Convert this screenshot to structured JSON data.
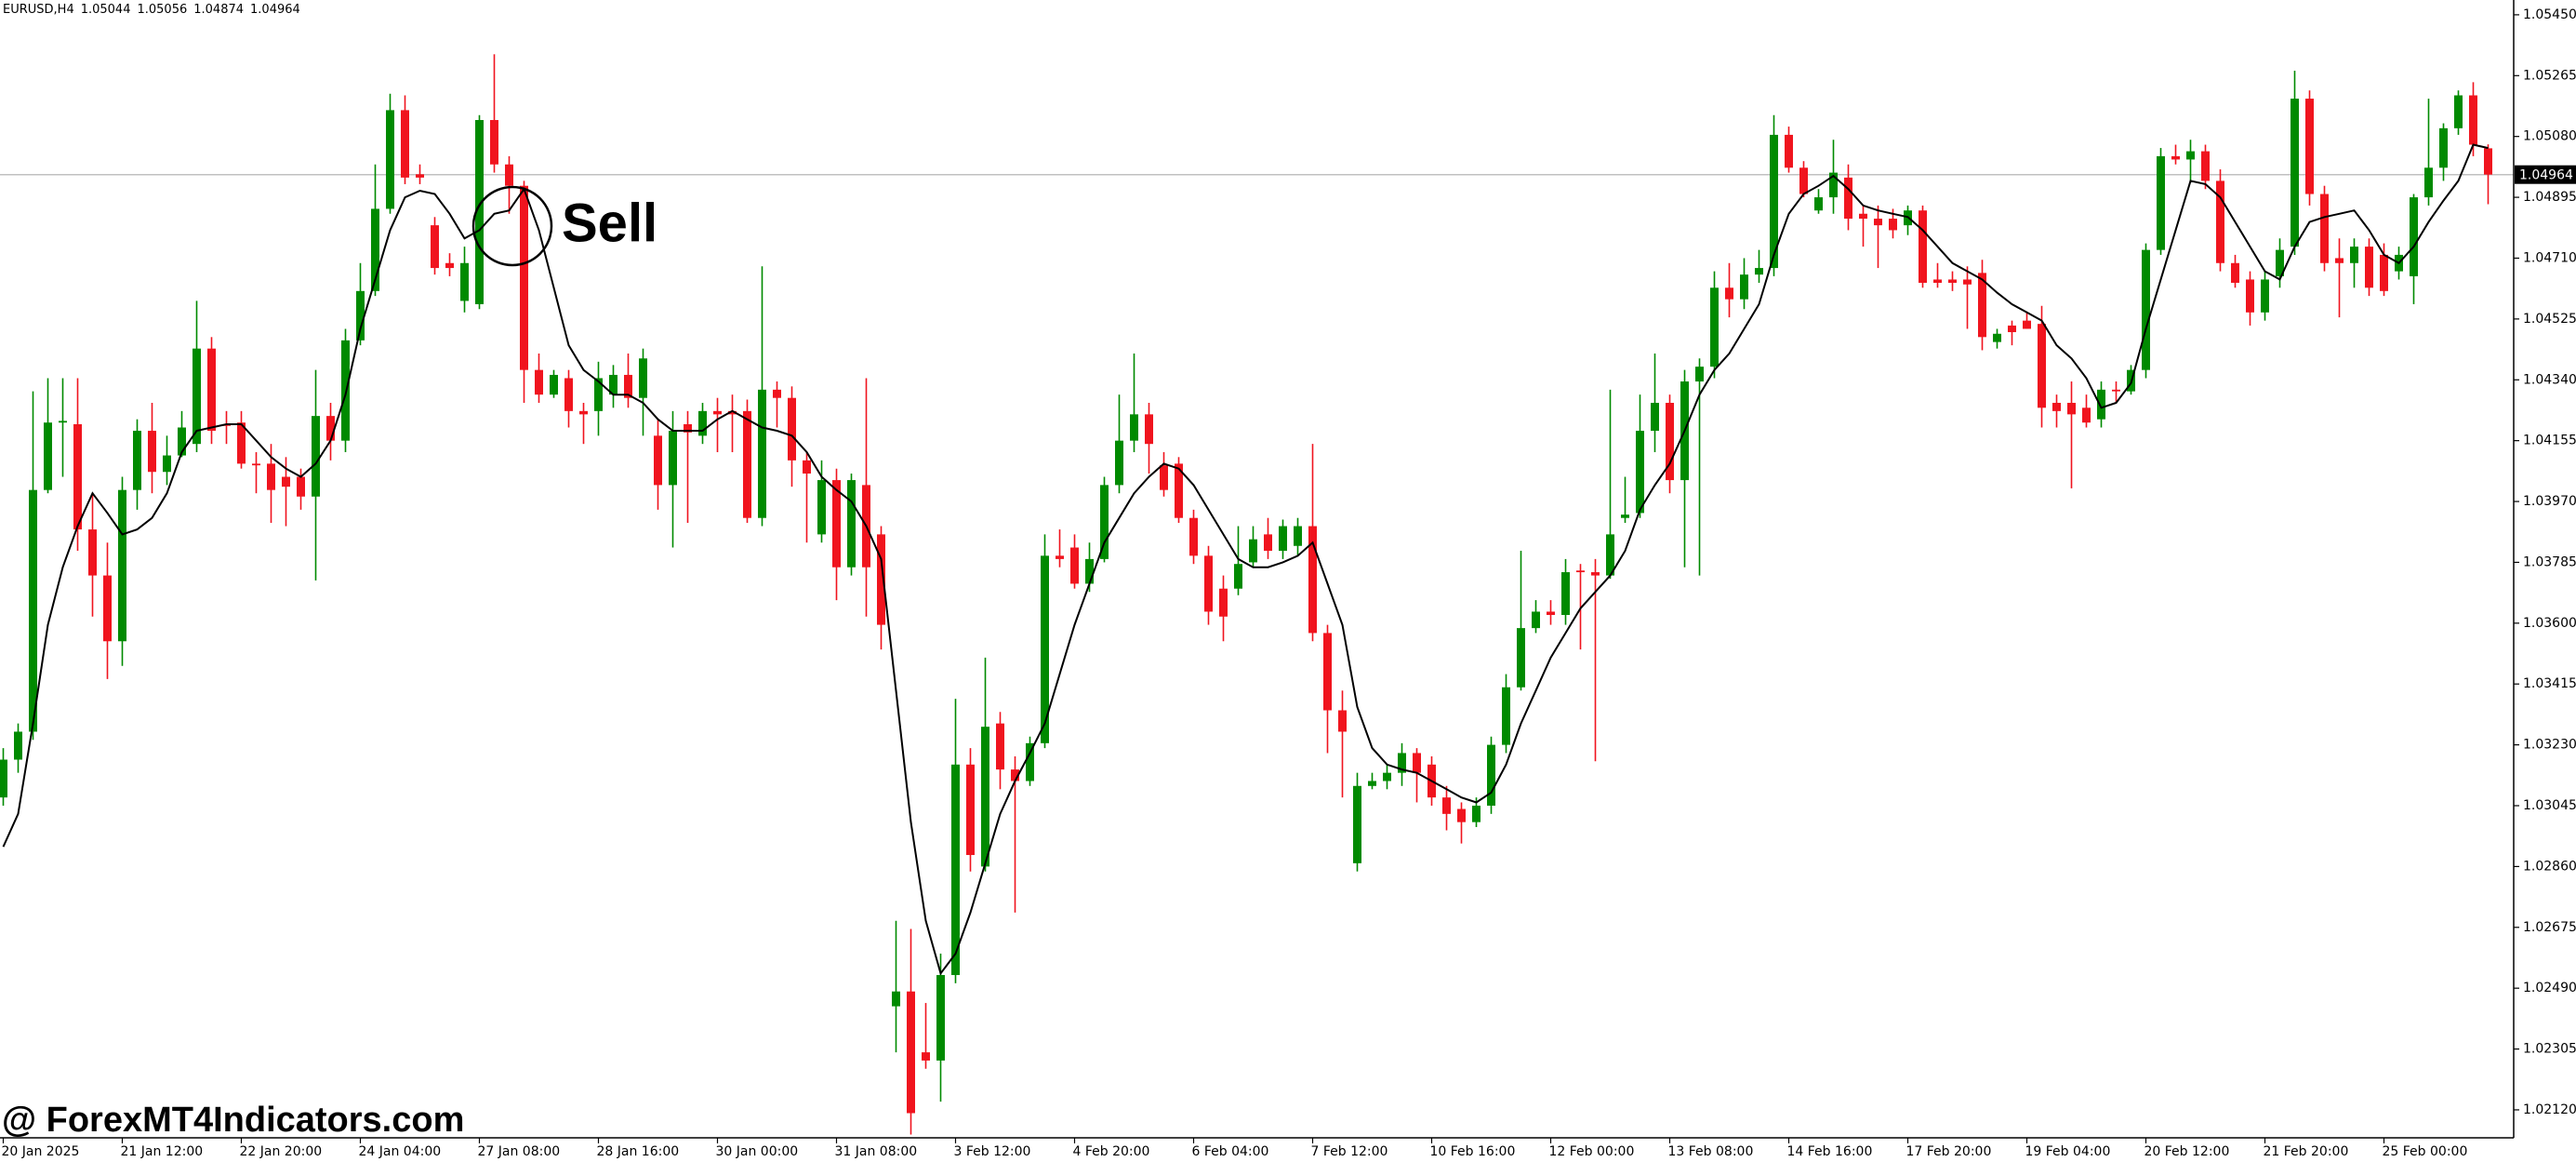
{
  "chart_data": {
    "type": "candlestick",
    "symbol": "EURUSD,H4",
    "annotation": "Sell",
    "watermark": "@ ForexMT4Indicators.com",
    "up_color": "#008a00",
    "down_color": "#f0141e",
    "categories": [
      "20 Jan 2025",
      null,
      null,
      null,
      null,
      null,
      null,
      null,
      "21 Jan 12:00",
      null,
      null,
      null,
      null,
      null,
      null,
      null,
      "22 Jan 20:00",
      null,
      null,
      null,
      null,
      null,
      null,
      null,
      "24 Jan 04:00",
      null,
      null,
      null,
      null,
      null,
      null,
      null,
      "27 Jan 08:00",
      null,
      null,
      null,
      null,
      null,
      null,
      null,
      "28 Jan 16:00",
      null,
      null,
      null,
      null,
      null,
      null,
      null,
      "30 Jan 00:00",
      null,
      null,
      null,
      null,
      null,
      null,
      null,
      "31 Jan 08:00",
      null,
      null,
      null,
      null,
      null,
      null,
      null,
      "3 Feb 12:00",
      null,
      null,
      null,
      null,
      null,
      null,
      null,
      "4 Feb 20:00",
      null,
      null,
      null,
      null,
      null,
      null,
      null,
      "6 Feb 04:00",
      null,
      null,
      null,
      null,
      null,
      null,
      null,
      "7 Feb 12:00",
      null,
      null,
      null,
      null,
      null,
      null,
      null,
      "10 Feb 16:00",
      null,
      null,
      null,
      null,
      null,
      null,
      null,
      "12 Feb 00:00",
      null,
      null,
      null,
      null,
      null,
      null,
      null,
      "13 Feb 08:00",
      null,
      null,
      null,
      null,
      null,
      null,
      null,
      "14 Feb 16:00",
      null,
      null,
      null,
      null,
      null,
      null,
      null,
      "17 Feb 20:00",
      null,
      null,
      null,
      null,
      null,
      null,
      null,
      "19 Feb 04:00",
      null,
      null,
      null,
      null,
      null,
      null,
      null,
      "20 Feb 12:00",
      null,
      null,
      null,
      null,
      null,
      null,
      null,
      "21 Feb 20:00",
      null,
      null,
      null,
      null,
      null,
      null,
      null,
      "25 Feb 00:00",
      null,
      null,
      null,
      null,
      null,
      null,
      null
    ],
    "open": [
      1.0307,
      1.03185,
      1.0327,
      1.04005,
      1.0421,
      1.04205,
      1.03885,
      1.03745,
      1.03545,
      1.04005,
      1.04185,
      1.0406,
      1.0411,
      1.04145,
      1.04435,
      1.04205,
      1.0421,
      1.04085,
      1.04085,
      1.04045,
      1.04045,
      1.03985,
      1.0423,
      1.04155,
      1.0446,
      1.0461,
      1.0486,
      1.0516,
      1.04965,
      1.0481,
      1.04695,
      1.0458,
      1.0457,
      1.0513,
      1.04995,
      1.0493,
      1.0437,
      1.04295,
      1.04345,
      1.04245,
      1.04245,
      1.04295,
      1.04355,
      1.04285,
      1.0417,
      1.0402,
      1.04205,
      1.0417,
      1.04245,
      1.04245,
      1.04245,
      1.0392,
      1.0431,
      1.04285,
      1.04095,
      1.0387,
      1.04035,
      1.0377,
      1.0402,
      1.0387,
      1.02435,
      1.0248,
      1.02295,
      1.0227,
      1.0253,
      1.0317,
      1.0286,
      1.03295,
      1.03155,
      1.0312,
      1.03235,
      1.03805,
      1.0383,
      1.0372,
      1.03795,
      1.0402,
      1.04155,
      1.04235,
      1.0408,
      1.04085,
      1.0392,
      1.03805,
      1.03705,
      1.03705,
      1.03785,
      1.0387,
      1.0382,
      1.03835,
      1.03895,
      1.0357,
      1.03335,
      1.0287,
      1.03105,
      1.0312,
      1.03145,
      1.03205,
      1.0317,
      1.0307,
      1.03035,
      1.02995,
      1.03045,
      1.0323,
      1.03405,
      1.03585,
      1.03635,
      1.03625,
      1.0376,
      1.03755,
      1.03745,
      1.0392,
      1.03935,
      1.04185,
      1.0427,
      1.04035,
      1.04335,
      1.0438,
      1.0462,
      1.04585,
      1.0466,
      1.0468,
      1.05085,
      1.04985,
      1.04855,
      1.04895,
      1.04955,
      1.04845,
      1.0483,
      1.0483,
      1.0481,
      1.04855,
      1.04645,
      1.04645,
      1.04645,
      1.04665,
      1.04455,
      1.04505,
      1.0452,
      1.0451,
      1.0427,
      1.0427,
      1.04255,
      1.0422,
      1.0431,
      1.04305,
      1.0437,
      1.04735,
      1.0502,
      1.0501,
      1.05035,
      1.04945,
      1.04695,
      1.04645,
      1.04545,
      1.04655,
      1.04745,
      1.05195,
      1.04905,
      1.0471,
      1.04695,
      1.04745,
      1.0472,
      1.0467,
      1.04655,
      1.04895,
      1.04985,
      1.05105,
      1.05205,
      1.05044
    ],
    "high": [
      1.0322,
      1.03295,
      1.04305,
      1.04345,
      1.04345,
      1.04345,
      1.03995,
      1.03845,
      1.04045,
      1.0422,
      1.0427,
      1.0417,
      1.04245,
      1.0458,
      1.0447,
      1.04245,
      1.04245,
      1.0412,
      1.04145,
      1.04105,
      1.0407,
      1.0437,
      1.0427,
      1.04495,
      1.04695,
      1.04995,
      1.0521,
      1.05205,
      1.04995,
      1.04835,
      1.04725,
      1.04745,
      1.05145,
      1.0533,
      1.0502,
      1.04945,
      1.0442,
      1.0437,
      1.0437,
      1.0427,
      1.04395,
      1.04385,
      1.0442,
      1.04435,
      1.0422,
      1.04245,
      1.04245,
      1.0427,
      1.04285,
      1.04295,
      1.0428,
      1.04685,
      1.04335,
      1.0432,
      1.0412,
      1.04095,
      1.0407,
      1.04055,
      1.04345,
      1.03895,
      1.02695,
      1.0267,
      1.02445,
      1.02595,
      1.0337,
      1.0322,
      1.03495,
      1.0333,
      1.03195,
      1.03255,
      1.0387,
      1.03885,
      1.0387,
      1.03845,
      1.04045,
      1.04295,
      1.0442,
      1.0427,
      1.0412,
      1.04105,
      1.03945,
      1.03835,
      1.03745,
      1.03895,
      1.03895,
      1.0392,
      1.03915,
      1.0392,
      1.04145,
      1.03595,
      1.03395,
      1.03145,
      1.03145,
      1.0317,
      1.03235,
      1.0322,
      1.03195,
      1.03105,
      1.03055,
      1.0307,
      1.03255,
      1.03445,
      1.0382,
      1.0367,
      1.0367,
      1.03795,
      1.0378,
      1.03795,
      1.0431,
      1.04045,
      1.04295,
      1.0442,
      1.04295,
      1.0437,
      1.04405,
      1.0467,
      1.04695,
      1.0471,
      1.04735,
      1.05145,
      1.0511,
      1.05005,
      1.0492,
      1.0507,
      1.04995,
      1.0487,
      1.0487,
      1.0486,
      1.0487,
      1.0487,
      1.04695,
      1.0467,
      1.04685,
      1.04705,
      1.04495,
      1.0452,
      1.04545,
      1.04565,
      1.04295,
      1.04335,
      1.04295,
      1.04335,
      1.04335,
      1.04385,
      1.04755,
      1.05045,
      1.05055,
      1.0507,
      1.05055,
      1.0498,
      1.0472,
      1.0467,
      1.0467,
      1.0477,
      1.0528,
      1.0522,
      1.0493,
      1.0477,
      1.0477,
      1.0477,
      1.04755,
      1.04745,
      1.04905,
      1.05195,
      1.0512,
      1.0522,
      1.05245,
      1.05056
    ],
    "low": [
      1.03045,
      1.03145,
      1.03245,
      1.03995,
      1.04045,
      1.0382,
      1.0362,
      1.0343,
      1.0347,
      1.03945,
      1.03995,
      1.0402,
      1.04105,
      1.0412,
      1.04145,
      1.04145,
      1.0407,
      1.03995,
      1.03905,
      1.03895,
      1.03945,
      1.0373,
      1.04095,
      1.0412,
      1.04445,
      1.04595,
      1.04845,
      1.04935,
      1.04935,
      1.0466,
      1.04655,
      1.04545,
      1.04555,
      1.0497,
      1.04845,
      1.0427,
      1.0427,
      1.04285,
      1.04195,
      1.04145,
      1.0417,
      1.04255,
      1.04255,
      1.0417,
      1.03945,
      1.0383,
      1.03905,
      1.04145,
      1.0412,
      1.0412,
      1.03905,
      1.03895,
      1.04195,
      1.04015,
      1.03845,
      1.03845,
      1.0367,
      1.03745,
      1.0362,
      1.0352,
      1.02295,
      1.02045,
      1.02245,
      1.02145,
      1.02505,
      1.02845,
      1.02845,
      1.03095,
      1.0272,
      1.03105,
      1.0322,
      1.0377,
      1.03705,
      1.03695,
      1.03785,
      1.03995,
      1.0412,
      1.04055,
      1.03985,
      1.03905,
      1.0378,
      1.03595,
      1.03545,
      1.03685,
      1.0377,
      1.03795,
      1.03795,
      1.03805,
      1.03545,
      1.03205,
      1.0307,
      1.02845,
      1.03095,
      1.03095,
      1.03105,
      1.03055,
      1.03045,
      1.0297,
      1.0293,
      1.0298,
      1.0302,
      1.03205,
      1.03395,
      1.0357,
      1.03595,
      1.03595,
      1.0352,
      1.0318,
      1.03735,
      1.03905,
      1.0392,
      1.0412,
      1.03995,
      1.0377,
      1.03745,
      1.04345,
      1.0453,
      1.04555,
      1.04635,
      1.04655,
      1.0497,
      1.04895,
      1.04845,
      1.04845,
      1.04795,
      1.04745,
      1.0468,
      1.0477,
      1.0478,
      1.0462,
      1.0462,
      1.0461,
      1.04495,
      1.0443,
      1.04435,
      1.04445,
      1.04495,
      1.04195,
      1.04195,
      1.0401,
      1.04195,
      1.04195,
      1.0427,
      1.04295,
      1.04345,
      1.0472,
      1.04995,
      1.04945,
      1.0492,
      1.0467,
      1.0462,
      1.04505,
      1.0452,
      1.0462,
      1.0472,
      1.0487,
      1.0467,
      1.0453,
      1.0462,
      1.04595,
      1.04595,
      1.04645,
      1.0457,
      1.0487,
      1.04945,
      1.05085,
      1.0502,
      1.04874
    ],
    "close": [
      1.03185,
      1.0327,
      1.04005,
      1.0421,
      1.04215,
      1.03885,
      1.03745,
      1.03545,
      1.04005,
      1.04185,
      1.0406,
      1.0411,
      1.04195,
      1.04435,
      1.04185,
      1.042,
      1.04085,
      1.0408,
      1.04005,
      1.04015,
      1.03985,
      1.0423,
      1.04155,
      1.0446,
      1.0461,
      1.0486,
      1.0516,
      1.04955,
      1.04955,
      1.0468,
      1.0468,
      1.04695,
      1.0513,
      1.04995,
      1.0493,
      1.0437,
      1.04295,
      1.04355,
      1.04245,
      1.04235,
      1.04345,
      1.04355,
      1.04285,
      1.04405,
      1.0402,
      1.04185,
      1.0418,
      1.04245,
      1.04235,
      1.04235,
      1.0392,
      1.0431,
      1.04285,
      1.04095,
      1.04055,
      1.04035,
      1.0377,
      1.04035,
      1.0377,
      1.03595,
      1.0248,
      1.0211,
      1.0227,
      1.0253,
      1.0317,
      1.02895,
      1.03285,
      1.03155,
      1.0312,
      1.03235,
      1.03805,
      1.03795,
      1.0372,
      1.03795,
      1.0402,
      1.04155,
      1.04235,
      1.04145,
      1.04005,
      1.0392,
      1.03805,
      1.03635,
      1.0362,
      1.0378,
      1.03855,
      1.0382,
      1.03895,
      1.03895,
      1.0357,
      1.03335,
      1.0327,
      1.03105,
      1.0312,
      1.03145,
      1.03205,
      1.03145,
      1.0307,
      1.0302,
      1.02995,
      1.03045,
      1.0323,
      1.03405,
      1.03585,
      1.03635,
      1.03625,
      1.03755,
      1.03755,
      1.03745,
      1.0387,
      1.0393,
      1.04185,
      1.0427,
      1.04035,
      1.04335,
      1.0438,
      1.0462,
      1.04585,
      1.0466,
      1.0468,
      1.05085,
      1.04985,
      1.04905,
      1.04895,
      1.0497,
      1.0483,
      1.0483,
      1.0481,
      1.04795,
      1.04855,
      1.04635,
      1.04635,
      1.04635,
      1.0463,
      1.0447,
      1.0448,
      1.04485,
      1.04495,
      1.04255,
      1.04245,
      1.04235,
      1.0421,
      1.0431,
      1.04305,
      1.0437,
      1.04735,
      1.0502,
      1.0501,
      1.05035,
      1.04945,
      1.04695,
      1.04635,
      1.04545,
      1.04645,
      1.04735,
      1.05195,
      1.04905,
      1.04695,
      1.04695,
      1.04745,
      1.0462,
      1.0461,
      1.0472,
      1.04895,
      1.04985,
      1.05105,
      1.05205,
      1.05055,
      1.04964
    ],
    "line": {
      "color": "#000000",
      "values": [
        1.0292,
        1.0302,
        1.03295,
        1.03595,
        1.0377,
        1.03895,
        1.03995,
        1.03935,
        1.0387,
        1.03885,
        1.0392,
        1.03995,
        1.0412,
        1.04185,
        1.04195,
        1.04205,
        1.04205,
        1.04155,
        1.04105,
        1.0407,
        1.04045,
        1.04085,
        1.04155,
        1.04295,
        1.04495,
        1.04645,
        1.04795,
        1.04895,
        1.04915,
        1.04905,
        1.04845,
        1.0477,
        1.04795,
        1.04845,
        1.04855,
        1.0492,
        1.04795,
        1.0462,
        1.04445,
        1.0437,
        1.04335,
        1.04295,
        1.04295,
        1.0427,
        1.0422,
        1.04185,
        1.04185,
        1.04185,
        1.0422,
        1.04245,
        1.0422,
        1.04195,
        1.04185,
        1.0417,
        1.0412,
        1.04045,
        1.04005,
        1.0397,
        1.03895,
        1.03795,
        1.03395,
        1.02995,
        1.02695,
        1.02535,
        1.02595,
        1.0272,
        1.0287,
        1.0302,
        1.0312,
        1.03205,
        1.03295,
        1.03445,
        1.03595,
        1.0372,
        1.03845,
        1.0392,
        1.03995,
        1.04045,
        1.04085,
        1.0407,
        1.0402,
        1.03945,
        1.0387,
        1.03795,
        1.0377,
        1.0377,
        1.03785,
        1.03805,
        1.03845,
        1.0372,
        1.03595,
        1.03345,
        1.0322,
        1.0317,
        1.03155,
        1.03145,
        1.0312,
        1.03095,
        1.0307,
        1.03055,
        1.03085,
        1.0317,
        1.03295,
        1.03395,
        1.03495,
        1.0357,
        1.03645,
        1.03695,
        1.03745,
        1.0382,
        1.03945,
        1.0402,
        1.04085,
        1.04185,
        1.04295,
        1.0437,
        1.0442,
        1.04495,
        1.0457,
        1.0472,
        1.04845,
        1.04905,
        1.0493,
        1.0496,
        1.0492,
        1.0487,
        1.04855,
        1.04845,
        1.04835,
        1.04795,
        1.04745,
        1.04695,
        1.0467,
        1.04645,
        1.04605,
        1.0457,
        1.04545,
        1.0452,
        1.04445,
        1.04405,
        1.04345,
        1.04255,
        1.0427,
        1.0433,
        1.04495,
        1.04645,
        1.04795,
        1.04945,
        1.04935,
        1.04895,
        1.0482,
        1.04745,
        1.0467,
        1.04645,
        1.04745,
        1.0482,
        1.04835,
        1.04845,
        1.04855,
        1.04795,
        1.0472,
        1.04695,
        1.04745,
        1.0482,
        1.04885,
        1.04945,
        1.05055,
        1.05045
      ]
    },
    "ylim": [
      1.02035,
      1.05495
    ],
    "yticks": [
      {
        "value": 1.0545,
        "label": "1.05450"
      },
      1.05265,
      {
        "value": 1.0508,
        "label": "1.05080"
      },
      1.04895,
      {
        "value": 1.0471,
        "label": "1.04710"
      },
      1.04525,
      {
        "value": 1.0434,
        "label": "1.04340"
      },
      1.04155,
      {
        "value": 1.0397,
        "label": "1.03970"
      },
      1.03785,
      {
        "value": 1.036,
        "label": "1.03600"
      },
      1.03415,
      {
        "value": 1.0323,
        "label": "1.03230"
      },
      1.03045,
      {
        "value": 1.0286,
        "label": "1.02860"
      },
      1.02675,
      {
        "value": 1.0249,
        "label": "1.02490"
      },
      1.02305,
      {
        "value": 1.0212,
        "label": "1.02120"
      }
    ]
  }
}
